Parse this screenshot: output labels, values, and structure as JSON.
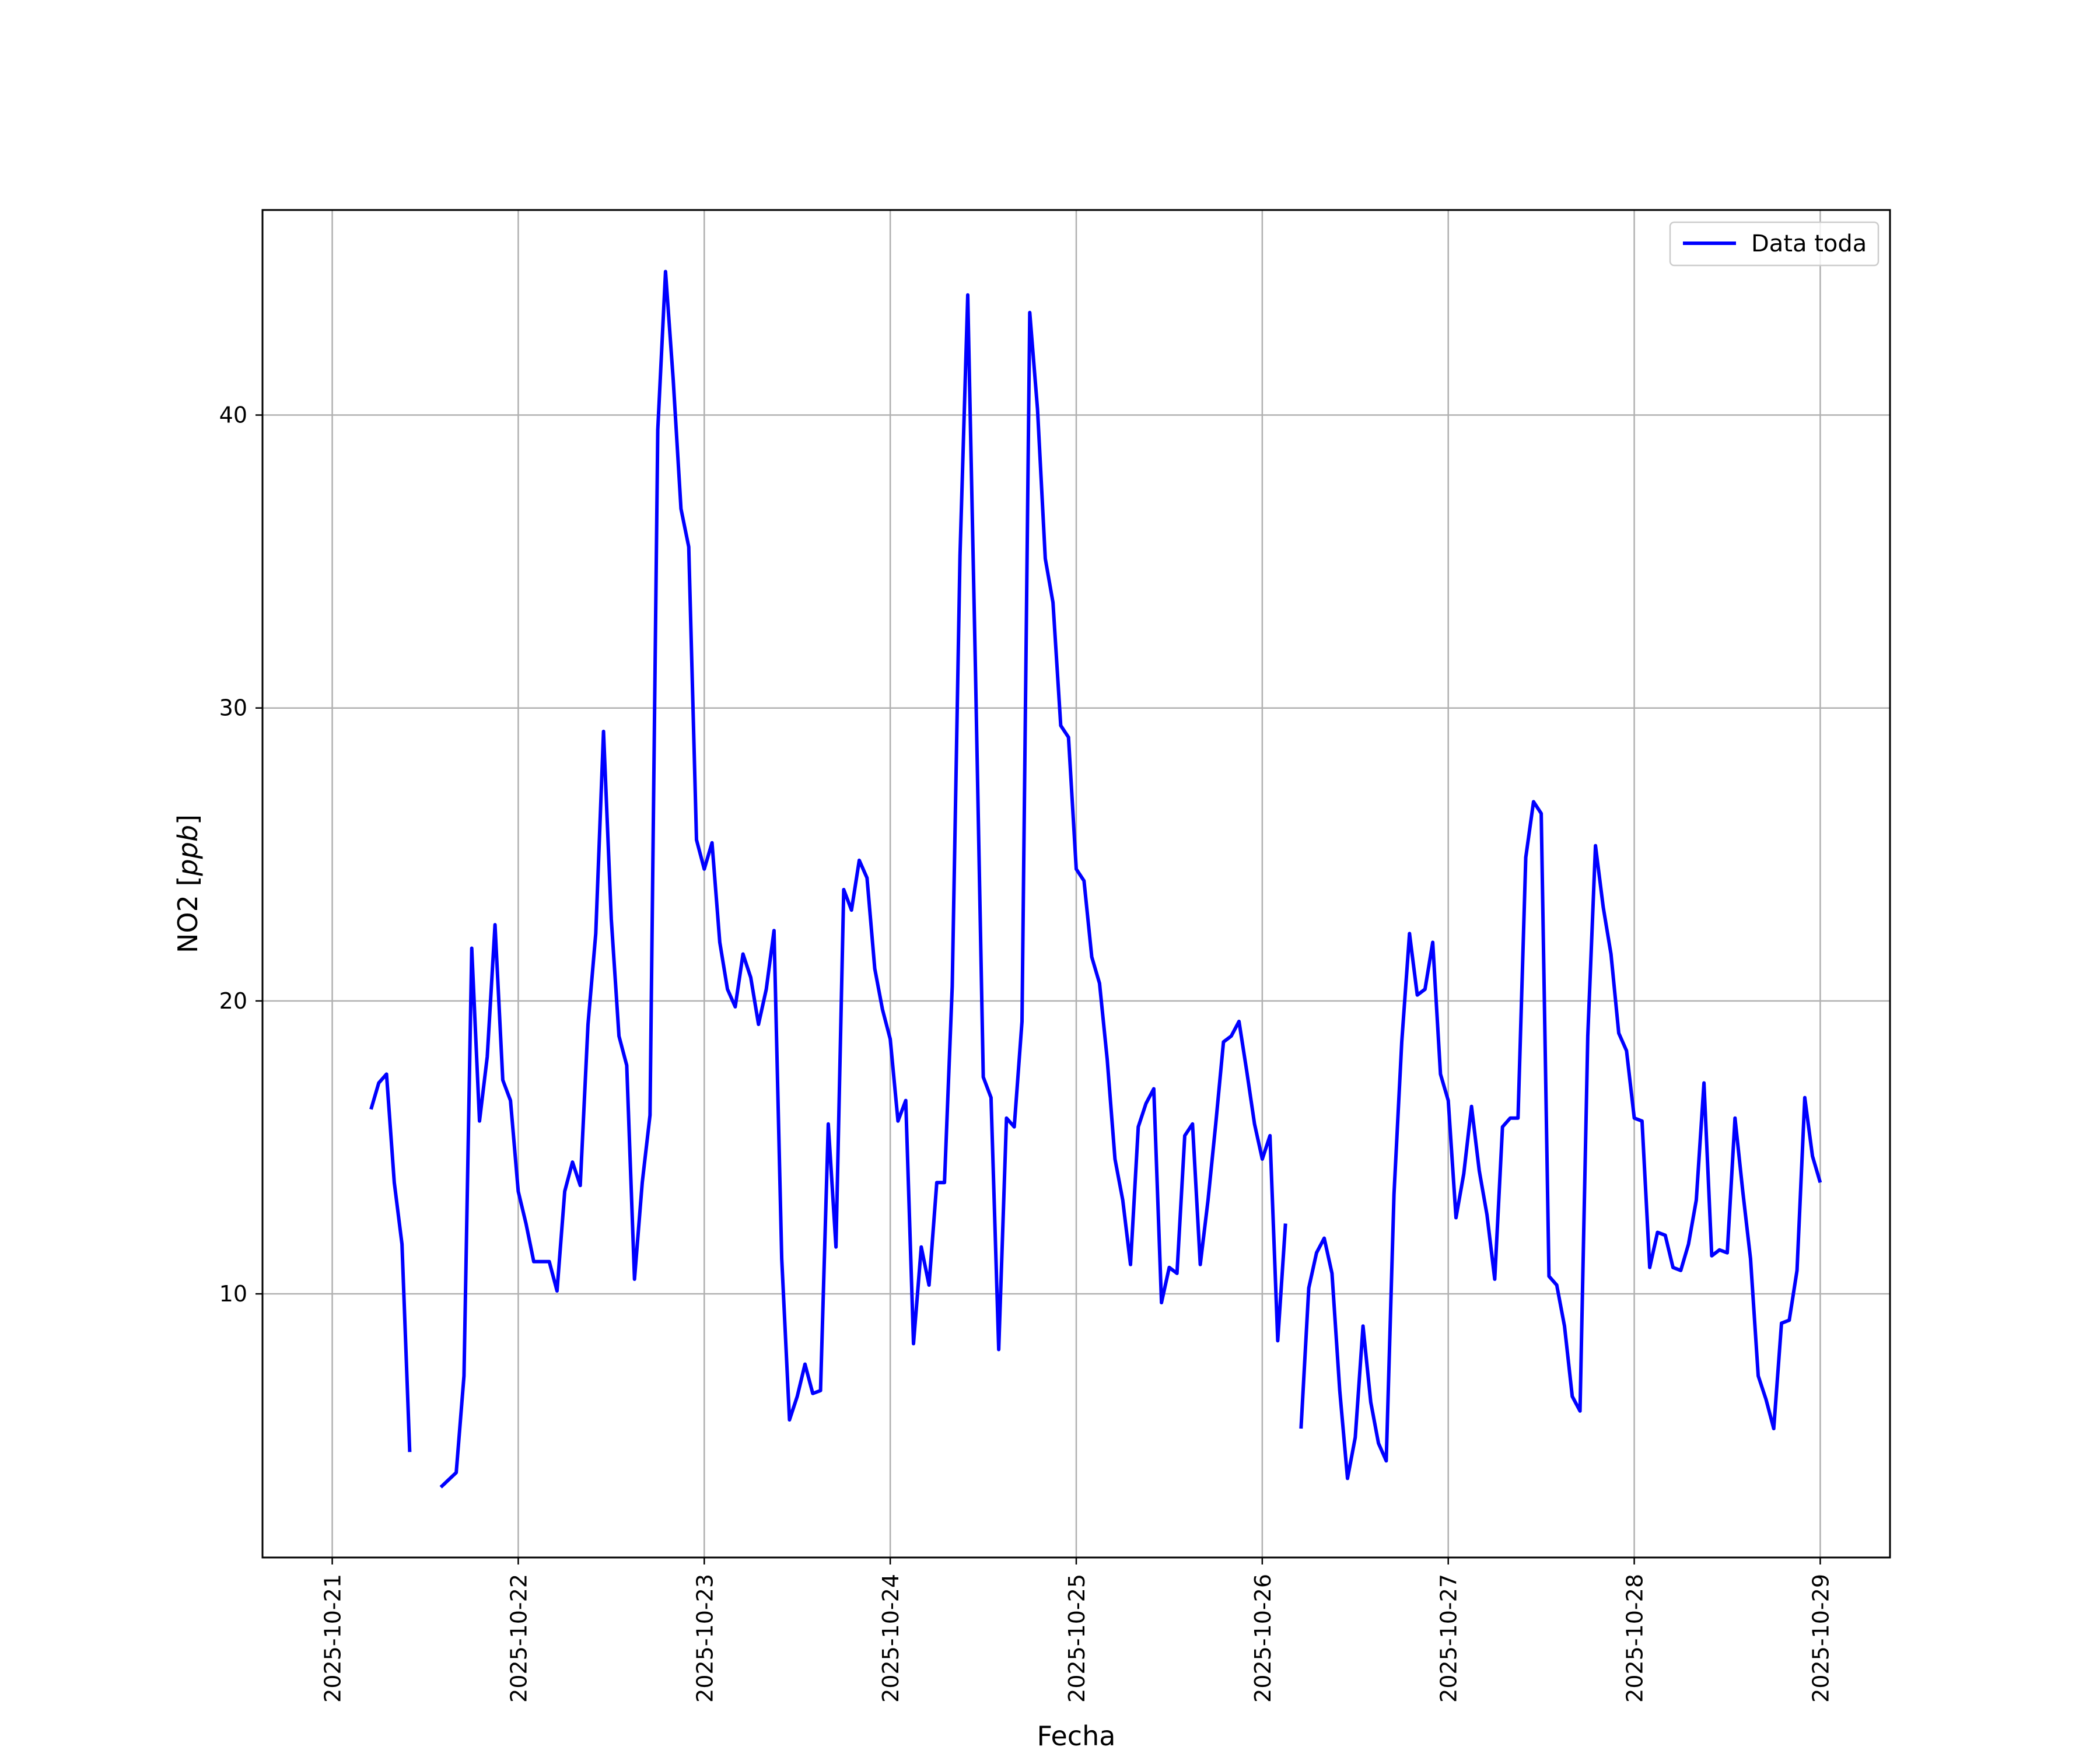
{
  "chart_data": {
    "type": "line",
    "title": "",
    "xlabel": "Fecha",
    "ylabel_main": "NO2 [",
    "ylabel_unit": "ppb",
    "ylabel_end": "]",
    "grid": true,
    "legend": {
      "placement": "top-right",
      "entries": [
        "Data toda"
      ]
    },
    "xlim": [
      "2025-10-20 15:00",
      "2025-10-29 09:00"
    ],
    "ylim": [
      1,
      47
    ],
    "x_ticks": [
      "2025-10-21",
      "2025-10-22",
      "2025-10-23",
      "2025-10-24",
      "2025-10-25",
      "2025-10-26",
      "2025-10-27",
      "2025-10-28",
      "2025-10-29"
    ],
    "y_ticks": [
      "10",
      "20",
      "30",
      "40"
    ],
    "series": [
      {
        "name": "Data toda",
        "color": "#0000ff",
        "segments": [
          [
            [
              "2025-10-21 05:00",
              16.3
            ],
            [
              "2025-10-21 06:00",
              17.2
            ],
            [
              "2025-10-21 07:00",
              17.5
            ],
            [
              "2025-10-21 08:00",
              13.8
            ],
            [
              "2025-10-21 09:00",
              11.7
            ],
            [
              "2025-10-21 10:00",
              4.6
            ]
          ],
          [
            [
              "2025-10-21 14:00",
              3.4
            ],
            [
              "2025-10-21 16:00",
              3.9
            ],
            [
              "2025-10-21 17:00",
              7.2
            ],
            [
              "2025-10-21 18:00",
              21.8
            ],
            [
              "2025-10-21 19:00",
              15.9
            ],
            [
              "2025-10-21 20:00",
              18.1
            ],
            [
              "2025-10-21 21:00",
              22.6
            ],
            [
              "2025-10-21 22:00",
              17.3
            ],
            [
              "2025-10-21 23:00",
              16.6
            ],
            [
              "2025-10-22 00:00",
              13.5
            ],
            [
              "2025-10-22 01:00",
              12.4
            ],
            [
              "2025-10-22 02:00",
              11.1
            ],
            [
              "2025-10-22 03:00",
              11.1
            ],
            [
              "2025-10-22 04:00",
              11.1
            ],
            [
              "2025-10-22 05:00",
              10.1
            ],
            [
              "2025-10-22 06:00",
              13.5
            ],
            [
              "2025-10-22 07:00",
              14.5
            ],
            [
              "2025-10-22 08:00",
              13.7
            ],
            [
              "2025-10-22 09:00",
              19.2
            ],
            [
              "2025-10-22 10:00",
              22.3
            ],
            [
              "2025-10-22 11:00",
              29.2
            ],
            [
              "2025-10-22 12:00",
              22.8
            ],
            [
              "2025-10-22 13:00",
              18.8
            ],
            [
              "2025-10-22 14:00",
              17.8
            ],
            [
              "2025-10-22 15:00",
              10.5
            ],
            [
              "2025-10-22 16:00",
              13.8
            ],
            [
              "2025-10-22 17:00",
              16.1
            ],
            [
              "2025-10-22 18:00",
              39.5
            ],
            [
              "2025-10-22 19:00",
              44.9
            ],
            [
              "2025-10-22 20:00",
              41.2
            ],
            [
              "2025-10-22 21:00",
              36.8
            ],
            [
              "2025-10-22 22:00",
              35.5
            ],
            [
              "2025-10-22 23:00",
              25.5
            ],
            [
              "2025-10-23 00:00",
              24.5
            ],
            [
              "2025-10-23 01:00",
              25.4
            ],
            [
              "2025-10-23 02:00",
              22.0
            ],
            [
              "2025-10-23 03:00",
              20.4
            ],
            [
              "2025-10-23 04:00",
              19.8
            ],
            [
              "2025-10-23 05:00",
              21.6
            ],
            [
              "2025-10-23 06:00",
              20.8
            ],
            [
              "2025-10-23 07:00",
              19.2
            ],
            [
              "2025-10-23 08:00",
              20.4
            ],
            [
              "2025-10-23 09:00",
              22.4
            ],
            [
              "2025-10-23 10:00",
              11.2
            ],
            [
              "2025-10-23 11:00",
              5.7
            ],
            [
              "2025-10-23 12:00",
              6.5
            ],
            [
              "2025-10-23 13:00",
              7.6
            ],
            [
              "2025-10-23 14:00",
              6.6
            ],
            [
              "2025-10-23 15:00",
              6.7
            ],
            [
              "2025-10-23 16:00",
              15.8
            ],
            [
              "2025-10-23 17:00",
              11.6
            ],
            [
              "2025-10-23 18:00",
              23.8
            ],
            [
              "2025-10-23 19:00",
              23.1
            ],
            [
              "2025-10-23 20:00",
              24.8
            ],
            [
              "2025-10-23 21:00",
              24.2
            ],
            [
              "2025-10-23 22:00",
              21.1
            ],
            [
              "2025-10-23 23:00",
              19.7
            ],
            [
              "2025-10-24 00:00",
              18.7
            ],
            [
              "2025-10-24 01:00",
              15.9
            ],
            [
              "2025-10-24 02:00",
              16.6
            ],
            [
              "2025-10-24 03:00",
              8.3
            ],
            [
              "2025-10-24 04:00",
              11.6
            ],
            [
              "2025-10-24 05:00",
              10.3
            ],
            [
              "2025-10-24 06:00",
              13.8
            ],
            [
              "2025-10-24 07:00",
              13.8
            ],
            [
              "2025-10-24 08:00",
              20.5
            ],
            [
              "2025-10-24 09:00",
              35.2
            ],
            [
              "2025-10-24 10:00",
              44.1
            ],
            [
              "2025-10-24 11:00",
              31.2
            ],
            [
              "2025-10-24 12:00",
              17.4
            ],
            [
              "2025-10-24 13:00",
              16.7
            ],
            [
              "2025-10-24 14:00",
              8.1
            ],
            [
              "2025-10-24 15:00",
              16.0
            ],
            [
              "2025-10-24 16:00",
              15.7
            ],
            [
              "2025-10-24 17:00",
              19.3
            ],
            [
              "2025-10-24 18:00",
              43.5
            ],
            [
              "2025-10-24 19:00",
              40.2
            ],
            [
              "2025-10-24 20:00",
              35.1
            ],
            [
              "2025-10-24 21:00",
              33.6
            ],
            [
              "2025-10-24 22:00",
              29.4
            ],
            [
              "2025-10-24 23:00",
              29.0
            ],
            [
              "2025-10-25 00:00",
              24.5
            ],
            [
              "2025-10-25 01:00",
              24.1
            ],
            [
              "2025-10-25 02:00",
              21.5
            ],
            [
              "2025-10-25 03:00",
              20.6
            ],
            [
              "2025-10-25 04:00",
              18.0
            ],
            [
              "2025-10-25 05:00",
              14.6
            ],
            [
              "2025-10-25 06:00",
              13.2
            ],
            [
              "2025-10-25 07:00",
              11.0
            ],
            [
              "2025-10-25 08:00",
              15.7
            ],
            [
              "2025-10-25 09:00",
              16.5
            ],
            [
              "2025-10-25 10:00",
              17.0
            ],
            [
              "2025-10-25 11:00",
              9.7
            ],
            [
              "2025-10-25 12:00",
              10.9
            ],
            [
              "2025-10-25 13:00",
              10.7
            ],
            [
              "2025-10-25 14:00",
              15.4
            ],
            [
              "2025-10-25 15:00",
              15.8
            ],
            [
              "2025-10-25 16:00",
              11.0
            ],
            [
              "2025-10-25 17:00",
              13.2
            ],
            [
              "2025-10-25 18:00",
              15.8
            ],
            [
              "2025-10-25 19:00",
              18.6
            ],
            [
              "2025-10-25 20:00",
              18.8
            ],
            [
              "2025-10-25 21:00",
              19.3
            ],
            [
              "2025-10-25 22:00",
              17.6
            ],
            [
              "2025-10-25 23:00",
              15.8
            ],
            [
              "2025-10-26 00:00",
              14.6
            ],
            [
              "2025-10-26 01:00",
              15.4
            ],
            [
              "2025-10-26 02:00",
              8.4
            ],
            [
              "2025-10-26 03:00",
              12.4
            ]
          ],
          [
            [
              "2025-10-26 05:00",
              5.4
            ],
            [
              "2025-10-26 06:00",
              10.2
            ],
            [
              "2025-10-26 07:00",
              11.4
            ],
            [
              "2025-10-26 08:00",
              11.9
            ],
            [
              "2025-10-26 09:00",
              10.7
            ],
            [
              "2025-10-26 10:00",
              6.7
            ],
            [
              "2025-10-26 11:00",
              3.7
            ],
            [
              "2025-10-26 12:00",
              5.1
            ],
            [
              "2025-10-26 13:00",
              8.9
            ],
            [
              "2025-10-26 14:00",
              6.3
            ],
            [
              "2025-10-26 15:00",
              4.9
            ],
            [
              "2025-10-26 16:00",
              4.3
            ],
            [
              "2025-10-26 17:00",
              13.4
            ],
            [
              "2025-10-26 18:00",
              18.6
            ],
            [
              "2025-10-26 19:00",
              22.3
            ],
            [
              "2025-10-26 20:00",
              20.2
            ],
            [
              "2025-10-26 21:00",
              20.4
            ],
            [
              "2025-10-26 22:00",
              22.0
            ],
            [
              "2025-10-26 23:00",
              17.5
            ],
            [
              "2025-10-27 00:00",
              16.6
            ],
            [
              "2025-10-27 01:00",
              12.6
            ],
            [
              "2025-10-27 02:00",
              14.1
            ],
            [
              "2025-10-27 03:00",
              16.4
            ],
            [
              "2025-10-27 04:00",
              14.2
            ],
            [
              "2025-10-27 05:00",
              12.7
            ],
            [
              "2025-10-27 06:00",
              10.5
            ],
            [
              "2025-10-27 07:00",
              15.7
            ],
            [
              "2025-10-27 08:00",
              16.0
            ],
            [
              "2025-10-27 09:00",
              16.0
            ],
            [
              "2025-10-27 10:00",
              24.9
            ],
            [
              "2025-10-27 11:00",
              26.8
            ],
            [
              "2025-10-27 12:00",
              26.4
            ],
            [
              "2025-10-27 13:00",
              10.6
            ],
            [
              "2025-10-27 14:00",
              10.3
            ],
            [
              "2025-10-27 15:00",
              8.9
            ],
            [
              "2025-10-27 16:00",
              6.5
            ],
            [
              "2025-10-27 17:00",
              6.0
            ],
            [
              "2025-10-27 18:00",
              18.8
            ],
            [
              "2025-10-27 19:00",
              25.3
            ],
            [
              "2025-10-27 20:00",
              23.2
            ],
            [
              "2025-10-27 21:00",
              21.6
            ],
            [
              "2025-10-27 22:00",
              18.9
            ],
            [
              "2025-10-27 23:00",
              18.3
            ],
            [
              "2025-10-28 00:00",
              16.0
            ],
            [
              "2025-10-28 01:00",
              15.9
            ],
            [
              "2025-10-28 02:00",
              10.9
            ],
            [
              "2025-10-28 03:00",
              12.1
            ],
            [
              "2025-10-28 04:00",
              12.0
            ],
            [
              "2025-10-28 05:00",
              10.9
            ],
            [
              "2025-10-28 06:00",
              10.8
            ],
            [
              "2025-10-28 07:00",
              11.7
            ],
            [
              "2025-10-28 08:00",
              13.2
            ],
            [
              "2025-10-28 09:00",
              17.2
            ],
            [
              "2025-10-28 10:00",
              11.3
            ],
            [
              "2025-10-28 11:00",
              11.5
            ],
            [
              "2025-10-28 12:00",
              11.4
            ],
            [
              "2025-10-28 13:00",
              16.0
            ],
            [
              "2025-10-28 14:00",
              13.5
            ],
            [
              "2025-10-28 15:00",
              11.2
            ],
            [
              "2025-10-28 16:00",
              7.2
            ],
            [
              "2025-10-28 17:00",
              6.4
            ],
            [
              "2025-10-28 18:00",
              5.4
            ],
            [
              "2025-10-28 19:00",
              9.0
            ],
            [
              "2025-10-28 20:00",
              9.1
            ],
            [
              "2025-10-28 21:00",
              10.8
            ],
            [
              "2025-10-28 22:00",
              16.7
            ],
            [
              "2025-10-28 23:00",
              14.7
            ],
            [
              "2025-10-29 00:00",
              13.8
            ]
          ]
        ]
      }
    ]
  }
}
